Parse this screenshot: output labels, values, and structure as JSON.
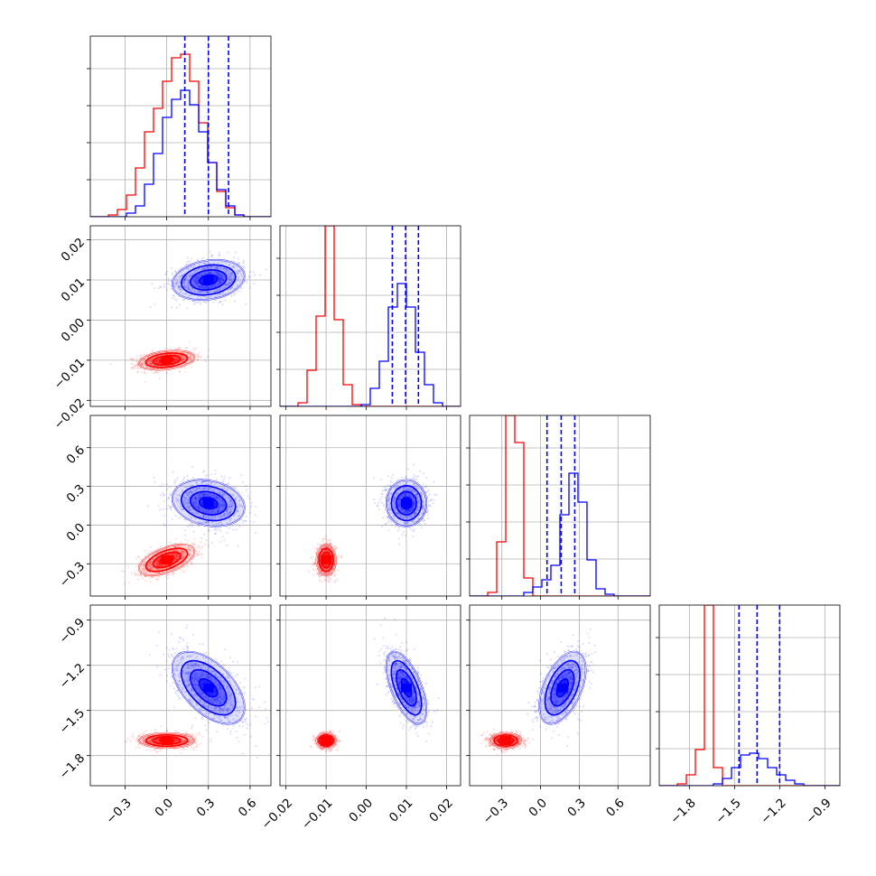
{
  "chart_data": {
    "type": "corner",
    "grid": true,
    "parameters": [
      {
        "ticks": [
          "−0.3",
          "0.0",
          "0.3",
          "0.6"
        ],
        "tick_values": [
          -0.3,
          0.0,
          0.3,
          0.6
        ],
        "range": [
          -0.55,
          0.75
        ]
      },
      {
        "ticks": [
          "−0.02",
          "−0.01",
          "0.00",
          "0.01",
          "0.02"
        ],
        "tick_values": [
          -0.02,
          -0.01,
          0.0,
          0.01,
          0.02
        ],
        "range": [
          -0.0215,
          0.0235
        ]
      },
      {
        "ticks": [
          "−0.3",
          "0.0",
          "0.3",
          "0.6"
        ],
        "tick_values": [
          -0.3,
          0.0,
          0.3,
          0.6
        ],
        "range": [
          -0.55,
          0.85
        ]
      },
      {
        "ticks": [
          "−1.8",
          "−1.5",
          "−1.2",
          "−0.9"
        ],
        "tick_values": [
          -1.8,
          -1.5,
          -1.2,
          -0.9
        ],
        "range": [
          -2.0,
          -0.8
        ]
      }
    ],
    "series": [
      {
        "color": "#ff0000",
        "means": [
          0.0,
          -0.01,
          -0.27,
          -1.7
        ],
        "sigmas": [
          0.1,
          0.0012,
          0.06,
          0.025
        ],
        "quantile_lines": false,
        "hists": [
          [
            0.0,
            0.0,
            0.01,
            0.04,
            0.12,
            0.27,
            0.47,
            0.6,
            0.75,
            0.88,
            0.9,
            0.75,
            0.52,
            0.3,
            0.14,
            0.05,
            0.01,
            0.0,
            0.0,
            0.0
          ],
          [
            0.0,
            0.0,
            0.02,
            0.2,
            0.5,
            1.0,
            0.48,
            0.12,
            0.01,
            0.0,
            0.0,
            0.0,
            0.0,
            0.0,
            0.0,
            0.0,
            0.0,
            0.0,
            0.0,
            0.0
          ],
          [
            0.0,
            0.0,
            0.02,
            0.3,
            1.0,
            0.85,
            0.1,
            0.0,
            0.0,
            0.0,
            0.0,
            0.0,
            0.0,
            0.0,
            0.0,
            0.0,
            0.0,
            0.0,
            0.0,
            0.0
          ],
          [
            0.0,
            0.0,
            0.01,
            0.06,
            0.2,
            1.0,
            0.1,
            0.0,
            0.0,
            0.0,
            0.0,
            0.0,
            0.0,
            0.0,
            0.0,
            0.0,
            0.0,
            0.0,
            0.0,
            0.0
          ]
        ]
      },
      {
        "color": "#0000ff",
        "means": [
          0.3,
          0.01,
          0.17,
          -1.35
        ],
        "sigmas": [
          0.13,
          0.0025,
          0.09,
          0.12
        ],
        "quantile_lines": true,
        "hists": [
          [
            0.0,
            0.0,
            0.0,
            0.0,
            0.02,
            0.06,
            0.18,
            0.35,
            0.55,
            0.65,
            0.7,
            0.62,
            0.47,
            0.3,
            0.15,
            0.06,
            0.01,
            0.0,
            0.0,
            0.0
          ],
          [
            0.0,
            0.0,
            0.0,
            0.0,
            0.0,
            0.0,
            0.0,
            0.0,
            0.0,
            0.01,
            0.1,
            0.25,
            0.55,
            0.68,
            0.55,
            0.3,
            0.12,
            0.02,
            0.0,
            0.0
          ],
          [
            0.0,
            0.0,
            0.0,
            0.0,
            0.0,
            0.0,
            0.02,
            0.05,
            0.09,
            0.17,
            0.45,
            0.68,
            0.52,
            0.2,
            0.04,
            0.01,
            0.0,
            0.0,
            0.0,
            0.0
          ],
          [
            0.0,
            0.0,
            0.0,
            0.0,
            0.0,
            0.0,
            0.01,
            0.04,
            0.1,
            0.17,
            0.18,
            0.15,
            0.1,
            0.06,
            0.03,
            0.01,
            0.0,
            0.0,
            0.0,
            0.0
          ]
        ],
        "quantiles": [
          [
            0.13,
            0.3,
            0.445
          ],
          [
            0.0065,
            0.0098,
            0.013
          ],
          [
            0.05,
            0.16,
            0.265
          ],
          [
            -1.47,
            -1.35,
            -1.2
          ]
        ]
      }
    ]
  }
}
